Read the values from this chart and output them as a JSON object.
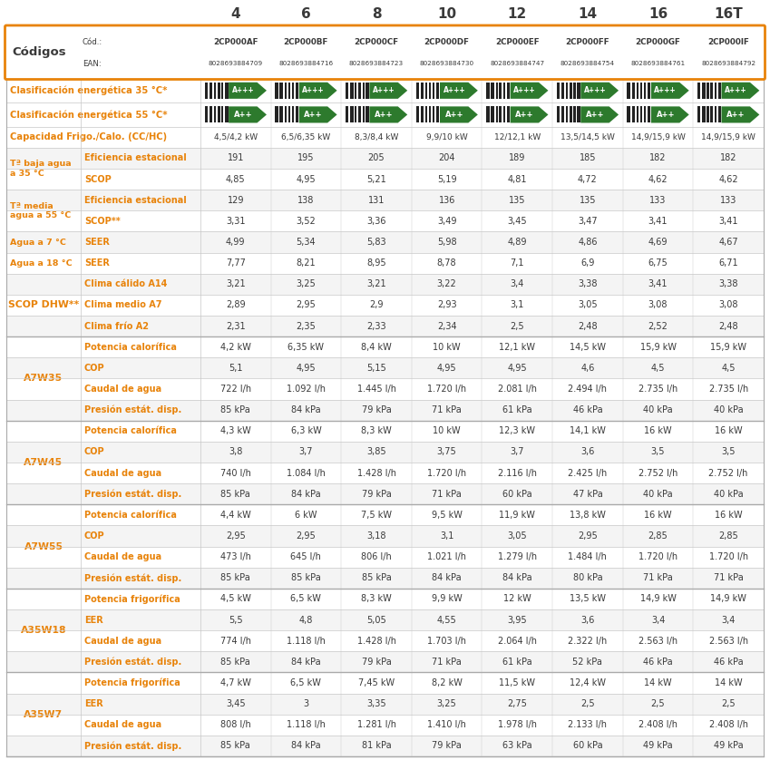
{
  "title_cols": [
    "4",
    "6",
    "8",
    "10",
    "12",
    "14",
    "16",
    "16T"
  ],
  "orange": "#E8830A",
  "text_dark": "#3A3A3A",
  "text_orange": "#E8830A",
  "codigos_label": "Códigos",
  "cod_label": "Cód.:",
  "ean_label": "EAN:",
  "cod_values": [
    "2CP000AF",
    "2CP000BF",
    "2CP000CF",
    "2CP000DF",
    "2CP000EF",
    "2CP000FF",
    "2CP000GF",
    "2CP000IF"
  ],
  "ean_values": [
    "8028693884709",
    "8028693884716",
    "8028693884723",
    "8028693884730",
    "8028693884747",
    "8028693884754",
    "8028693884761",
    "8028693884792"
  ],
  "rows": [
    {
      "group": "Clasificación energética 35 °C*",
      "subgroup": "",
      "values": [
        "A+++",
        "A+++",
        "A+++",
        "A+++",
        "A+++",
        "A+++",
        "A+++",
        "A+++"
      ],
      "type": "energy35",
      "span": 1
    },
    {
      "group": "Clasificación energética 55 °C*",
      "subgroup": "",
      "values": [
        "A++",
        "A++",
        "A++",
        "A++",
        "A++",
        "A++",
        "A++",
        "A++"
      ],
      "type": "energy55",
      "span": 1
    },
    {
      "group": "Capacidad Frigo./Calo. (CC/HC)",
      "subgroup": "",
      "values": [
        "4,5/4,2 kW",
        "6,5/6,35 kW",
        "8,3/8,4 kW",
        "9,9/10 kW",
        "12/12,1 kW",
        "13,5/14,5 kW",
        "14,9/15,9 kW",
        "14,9/15,9 kW"
      ],
      "type": "capacity",
      "span": 1
    },
    {
      "group": "Tª baja agua\na 35 °C",
      "subgroup": "Eficiencia estacional",
      "values": [
        "191",
        "195",
        "205",
        "204",
        "189",
        "185",
        "182",
        "182"
      ],
      "type": "data",
      "span": 2,
      "group_row": 0
    },
    {
      "group": "Tª baja agua\na 35 °C",
      "subgroup": "SCOP",
      "values": [
        "4,85",
        "4,95",
        "5,21",
        "5,19",
        "4,81",
        "4,72",
        "4,62",
        "4,62"
      ],
      "type": "data",
      "span": 2,
      "group_row": 1
    },
    {
      "group": "Tª media\nagua a 55 °C",
      "subgroup": "Eficiencia estacional",
      "values": [
        "129",
        "138",
        "131",
        "136",
        "135",
        "135",
        "133",
        "133"
      ],
      "type": "data",
      "span": 2,
      "group_row": 0
    },
    {
      "group": "Tª media\nagua a 55 °C",
      "subgroup": "SCOP**",
      "values": [
        "3,31",
        "3,52",
        "3,36",
        "3,49",
        "3,45",
        "3,47",
        "3,41",
        "3,41"
      ],
      "type": "data",
      "span": 2,
      "group_row": 1
    },
    {
      "group": "Agua a 7 °C",
      "subgroup": "SEER",
      "values": [
        "4,99",
        "5,34",
        "5,83",
        "5,98",
        "4,89",
        "4,86",
        "4,69",
        "4,67"
      ],
      "type": "data",
      "span": 2,
      "group_row": 0
    },
    {
      "group": "Agua a 18 °C",
      "subgroup": "SEER",
      "values": [
        "7,77",
        "8,21",
        "8,95",
        "8,78",
        "7,1",
        "6,9",
        "6,75",
        "6,71"
      ],
      "type": "data",
      "span": 2,
      "group_row": 1
    },
    {
      "group": "SCOP DHW**",
      "subgroup": "Clima cálido A14",
      "values": [
        "3,21",
        "3,25",
        "3,21",
        "3,22",
        "3,4",
        "3,38",
        "3,41",
        "3,38"
      ],
      "type": "data",
      "span": 3,
      "group_row": 0
    },
    {
      "group": "SCOP DHW**",
      "subgroup": "Clima medio A7",
      "values": [
        "2,89",
        "2,95",
        "2,9",
        "2,93",
        "3,1",
        "3,05",
        "3,08",
        "3,08"
      ],
      "type": "data",
      "span": 3,
      "group_row": 1
    },
    {
      "group": "SCOP DHW**",
      "subgroup": "Clima frío A2",
      "values": [
        "2,31",
        "2,35",
        "2,33",
        "2,34",
        "2,5",
        "2,48",
        "2,52",
        "2,48"
      ],
      "type": "data",
      "span": 3,
      "group_row": 2
    },
    {
      "group": "A7W35",
      "subgroup": "Potencia calorífica",
      "values": [
        "4,2 kW",
        "6,35 kW",
        "8,4 kW",
        "10 kW",
        "12,1 kW",
        "14,5 kW",
        "15,9 kW",
        "15,9 kW"
      ],
      "type": "data",
      "span": 4,
      "group_row": 0
    },
    {
      "group": "A7W35",
      "subgroup": "COP",
      "values": [
        "5,1",
        "4,95",
        "5,15",
        "4,95",
        "4,95",
        "4,6",
        "4,5",
        "4,5"
      ],
      "type": "data",
      "span": 4,
      "group_row": 1
    },
    {
      "group": "A7W35",
      "subgroup": "Caudal de agua",
      "values": [
        "722 l/h",
        "1.092 l/h",
        "1.445 l/h",
        "1.720 l/h",
        "2.081 l/h",
        "2.494 l/h",
        "2.735 l/h",
        "2.735 l/h"
      ],
      "type": "data",
      "span": 4,
      "group_row": 2
    },
    {
      "group": "A7W35",
      "subgroup": "Presión estát. disp.",
      "values": [
        "85 kPa",
        "84 kPa",
        "79 kPa",
        "71 kPa",
        "61 kPa",
        "46 kPa",
        "40 kPa",
        "40 kPa"
      ],
      "type": "data",
      "span": 4,
      "group_row": 3
    },
    {
      "group": "A7W45",
      "subgroup": "Potencia calorífica",
      "values": [
        "4,3 kW",
        "6,3 kW",
        "8,3 kW",
        "10 kW",
        "12,3 kW",
        "14,1 kW",
        "16 kW",
        "16 kW"
      ],
      "type": "data",
      "span": 4,
      "group_row": 0
    },
    {
      "group": "A7W45",
      "subgroup": "COP",
      "values": [
        "3,8",
        "3,7",
        "3,85",
        "3,75",
        "3,7",
        "3,6",
        "3,5",
        "3,5"
      ],
      "type": "data",
      "span": 4,
      "group_row": 1
    },
    {
      "group": "A7W45",
      "subgroup": "Caudal de agua",
      "values": [
        "740 l/h",
        "1.084 l/h",
        "1.428 l/h",
        "1.720 l/h",
        "2.116 l/h",
        "2.425 l/h",
        "2.752 l/h",
        "2.752 l/h"
      ],
      "type": "data",
      "span": 4,
      "group_row": 2
    },
    {
      "group": "A7W45",
      "subgroup": "Presión estát. disp.",
      "values": [
        "85 kPa",
        "84 kPa",
        "79 kPa",
        "71 kPa",
        "60 kPa",
        "47 kPa",
        "40 kPa",
        "40 kPa"
      ],
      "type": "data",
      "span": 4,
      "group_row": 3
    },
    {
      "group": "A7W55",
      "subgroup": "Potencia calorífica",
      "values": [
        "4,4 kW",
        "6 kW",
        "7,5 kW",
        "9,5 kW",
        "11,9 kW",
        "13,8 kW",
        "16 kW",
        "16 kW"
      ],
      "type": "data",
      "span": 4,
      "group_row": 0
    },
    {
      "group": "A7W55",
      "subgroup": "COP",
      "values": [
        "2,95",
        "2,95",
        "3,18",
        "3,1",
        "3,05",
        "2,95",
        "2,85",
        "2,85"
      ],
      "type": "data",
      "span": 4,
      "group_row": 1
    },
    {
      "group": "A7W55",
      "subgroup": "Caudal de agua",
      "values": [
        "473 l/h",
        "645 l/h",
        "806 l/h",
        "1.021 l/h",
        "1.279 l/h",
        "1.484 l/h",
        "1.720 l/h",
        "1.720 l/h"
      ],
      "type": "data",
      "span": 4,
      "group_row": 2
    },
    {
      "group": "A7W55",
      "subgroup": "Presión estát. disp.",
      "values": [
        "85 kPa",
        "85 kPa",
        "85 kPa",
        "84 kPa",
        "84 kPa",
        "80 kPa",
        "71 kPa",
        "71 kPa"
      ],
      "type": "data",
      "span": 4,
      "group_row": 3
    },
    {
      "group": "A35W18",
      "subgroup": "Potencia frigorífica",
      "values": [
        "4,5 kW",
        "6,5 kW",
        "8,3 kW",
        "9,9 kW",
        "12 kW",
        "13,5 kW",
        "14,9 kW",
        "14,9 kW"
      ],
      "type": "data",
      "span": 4,
      "group_row": 0
    },
    {
      "group": "A35W18",
      "subgroup": "EER",
      "values": [
        "5,5",
        "4,8",
        "5,05",
        "4,55",
        "3,95",
        "3,6",
        "3,4",
        "3,4"
      ],
      "type": "data",
      "span": 4,
      "group_row": 1
    },
    {
      "group": "A35W18",
      "subgroup": "Caudal de agua",
      "values": [
        "774 l/h",
        "1.118 l/h",
        "1.428 l/h",
        "1.703 l/h",
        "2.064 l/h",
        "2.322 l/h",
        "2.563 l/h",
        "2.563 l/h"
      ],
      "type": "data",
      "span": 4,
      "group_row": 2
    },
    {
      "group": "A35W18",
      "subgroup": "Presión estát. disp.",
      "values": [
        "85 kPa",
        "84 kPa",
        "79 kPa",
        "71 kPa",
        "61 kPa",
        "52 kPa",
        "46 kPa",
        "46 kPa"
      ],
      "type": "data",
      "span": 4,
      "group_row": 3
    },
    {
      "group": "A35W7",
      "subgroup": "Potencia frigorífica",
      "values": [
        "4,7 kW",
        "6,5 kW",
        "7,45 kW",
        "8,2 kW",
        "11,5 kW",
        "12,4 kW",
        "14 kW",
        "14 kW"
      ],
      "type": "data",
      "span": 4,
      "group_row": 0
    },
    {
      "group": "A35W7",
      "subgroup": "EER",
      "values": [
        "3,45",
        "3",
        "3,35",
        "3,25",
        "2,75",
        "2,5",
        "2,5",
        "2,5"
      ],
      "type": "data",
      "span": 4,
      "group_row": 1
    },
    {
      "group": "A35W7",
      "subgroup": "Caudal de agua",
      "values": [
        "808 l/h",
        "1.118 l/h",
        "1.281 l/h",
        "1.410 l/h",
        "1.978 l/h",
        "2.133 l/h",
        "2.408 l/h",
        "2.408 l/h"
      ],
      "type": "data",
      "span": 4,
      "group_row": 2
    },
    {
      "group": "A35W7",
      "subgroup": "Presión estát. disp.",
      "values": [
        "85 kPa",
        "84 kPa",
        "81 kPa",
        "79 kPa",
        "63 kPa",
        "60 kPa",
        "49 kPa",
        "49 kPa"
      ],
      "type": "data",
      "span": 4,
      "group_row": 3
    }
  ]
}
